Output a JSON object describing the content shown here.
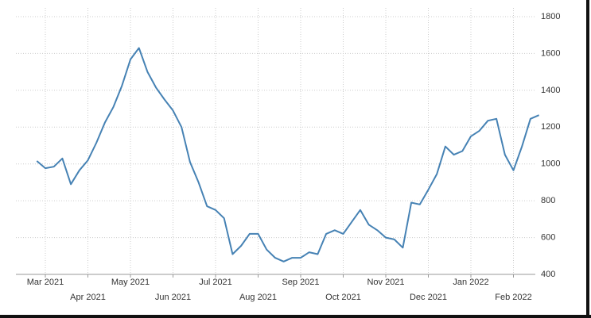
{
  "chart_data": {
    "type": "line",
    "categories": [
      null,
      "Mar 2021",
      null,
      null,
      null,
      null,
      "Apr 2021",
      null,
      null,
      null,
      null,
      "May 2021",
      null,
      null,
      null,
      null,
      "Jun 2021",
      null,
      null,
      null,
      null,
      "Jul 2021",
      null,
      null,
      null,
      null,
      "Aug 2021",
      null,
      null,
      null,
      null,
      "Sep 2021",
      null,
      null,
      null,
      null,
      "Oct 2021",
      null,
      null,
      null,
      null,
      "Nov 2021",
      null,
      null,
      null,
      null,
      "Dec 2021",
      null,
      null,
      null,
      null,
      "Jan 2022",
      null,
      null,
      null,
      null,
      "Feb 2022",
      null,
      null,
      null
    ],
    "series": [
      {
        "color": "#4682b4",
        "values": [
          1016,
          977,
          985,
          1030,
          890,
          965,
          1020,
          1115,
          1225,
          1310,
          1425,
          1568,
          1630,
          1500,
          1415,
          1350,
          1290,
          1200,
          1010,
          900,
          770,
          750,
          705,
          510,
          555,
          620,
          620,
          535,
          490,
          470,
          490,
          490,
          520,
          510,
          620,
          640,
          620,
          685,
          750,
          670,
          640,
          600,
          590,
          545,
          790,
          780,
          860,
          945,
          1095,
          1050,
          1070,
          1150,
          1180,
          1235,
          1245,
          1050,
          965,
          1095,
          1245,
          1265
        ]
      }
    ],
    "ylim": [
      400,
      1800
    ],
    "yticks": [
      400,
      600,
      800,
      1000,
      1200,
      1400,
      1600,
      1800
    ],
    "grid": true
  }
}
